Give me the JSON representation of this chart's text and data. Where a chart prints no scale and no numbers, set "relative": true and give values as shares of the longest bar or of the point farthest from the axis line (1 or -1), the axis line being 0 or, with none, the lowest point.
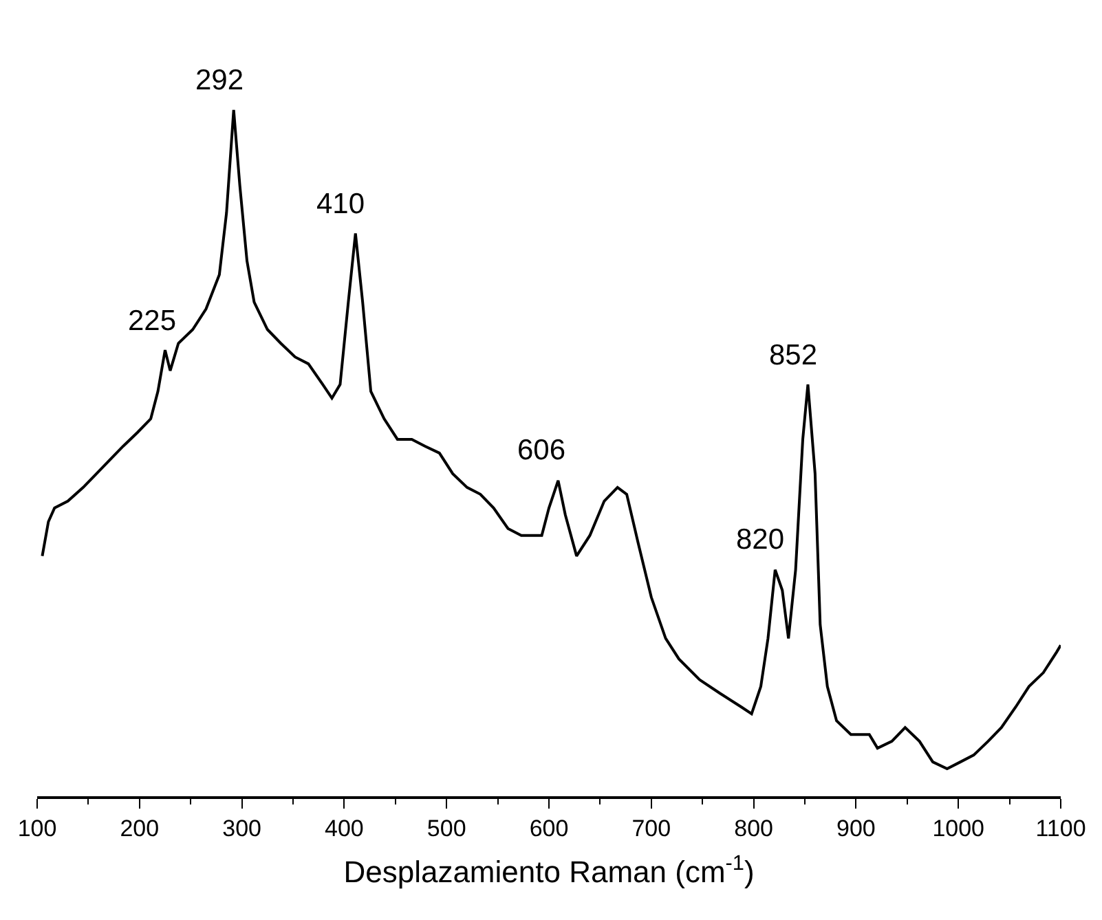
{
  "chart_data": {
    "type": "line",
    "relative": true,
    "xlabel": "Desplazamiento Raman (cm$^{-1}$)",
    "xlim": [
      100,
      1100
    ],
    "xticks": [
      100,
      200,
      300,
      400,
      500,
      600,
      700,
      800,
      900,
      1000,
      1100
    ],
    "marker": "none",
    "line_style": "solid",
    "series": [
      {
        "color": "#000000",
        "x": [
          105,
          111,
          117,
          130,
          145,
          158,
          171,
          184,
          198,
          211,
          218,
          225,
          230,
          238,
          252,
          265,
          278,
          285,
          292,
          298,
          305,
          312,
          325,
          338,
          352,
          365,
          379,
          388,
          396,
          404,
          411,
          418,
          426,
          439,
          452,
          466,
          479,
          493,
          506,
          520,
          533,
          546,
          560,
          573,
          593,
          600,
          609,
          616,
          627,
          640,
          654,
          667,
          676,
          687,
          700,
          714,
          727,
          747,
          767,
          788,
          798,
          807,
          814,
          821,
          828,
          834,
          841,
          848,
          853,
          860,
          865,
          872,
          881,
          895,
          905,
          913,
          921,
          935,
          948,
          962,
          975,
          989,
          1002,
          1015,
          1029,
          1042,
          1056,
          1069,
          1083,
          1096,
          1100
        ],
        "values": [
          0.35,
          0.4,
          0.42,
          0.43,
          0.45,
          0.47,
          0.49,
          0.51,
          0.53,
          0.55,
          0.59,
          0.65,
          0.62,
          0.66,
          0.68,
          0.71,
          0.76,
          0.85,
          1.0,
          0.89,
          0.78,
          0.72,
          0.68,
          0.66,
          0.64,
          0.63,
          0.6,
          0.58,
          0.6,
          0.72,
          0.82,
          0.72,
          0.59,
          0.55,
          0.52,
          0.52,
          0.51,
          0.5,
          0.47,
          0.45,
          0.44,
          0.42,
          0.39,
          0.38,
          0.38,
          0.42,
          0.46,
          0.41,
          0.35,
          0.38,
          0.43,
          0.45,
          0.44,
          0.37,
          0.29,
          0.23,
          0.2,
          0.17,
          0.15,
          0.13,
          0.12,
          0.16,
          0.23,
          0.33,
          0.3,
          0.23,
          0.33,
          0.52,
          0.6,
          0.47,
          0.25,
          0.16,
          0.11,
          0.09,
          0.09,
          0.09,
          0.07,
          0.08,
          0.1,
          0.08,
          0.05,
          0.04,
          0.05,
          0.06,
          0.08,
          0.1,
          0.13,
          0.16,
          0.18,
          0.21,
          0.22
        ]
      }
    ],
    "annotations": [
      {
        "text": "225",
        "x": 225,
        "y": 0.65
      },
      {
        "text": "292",
        "x": 292,
        "y": 1.0
      },
      {
        "text": "410",
        "x": 410,
        "y": 0.82
      },
      {
        "text": "606",
        "x": 606,
        "y": 0.46
      },
      {
        "text": "820",
        "x": 820,
        "y": 0.33
      },
      {
        "text": "852",
        "x": 852,
        "y": 0.6
      }
    ]
  }
}
